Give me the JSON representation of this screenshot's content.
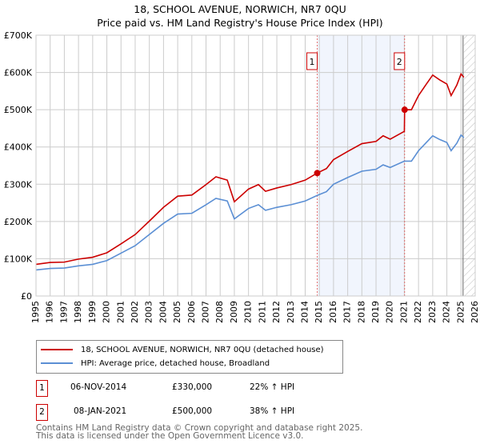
{
  "title": "18, SCHOOL AVENUE, NORWICH, NR7 0QU",
  "subtitle": "Price paid vs. HM Land Registry's House Price Index (HPI)",
  "chart_data": {
    "type": "line",
    "ylim": [
      0,
      700000
    ],
    "xlim": [
      1995,
      2026
    ],
    "yticks": [
      {
        "v": 0,
        "label": "£0"
      },
      {
        "v": 100000,
        "label": "£100K"
      },
      {
        "v": 200000,
        "label": "£200K"
      },
      {
        "v": 300000,
        "label": "£300K"
      },
      {
        "v": 400000,
        "label": "£400K"
      },
      {
        "v": 500000,
        "label": "£500K"
      },
      {
        "v": 600000,
        "label": "£600K"
      },
      {
        "v": 700000,
        "label": "£700K"
      }
    ],
    "xticks": [
      "1995",
      "1996",
      "1997",
      "1998",
      "1999",
      "2000",
      "2001",
      "2002",
      "2003",
      "2004",
      "2005",
      "2006",
      "2007",
      "2008",
      "2009",
      "2010",
      "2011",
      "2012",
      "2013",
      "2014",
      "2015",
      "2016",
      "2017",
      "2018",
      "2019",
      "2020",
      "2021",
      "2022",
      "2023",
      "2024",
      "2025",
      "2026"
    ],
    "grid": true,
    "shaded_range": [
      2014.85,
      2021.02
    ],
    "forecast_hatch_from": 2025.2,
    "series": [
      {
        "name": "18, SCHOOL AVENUE, NORWICH, NR7 0QU (detached house)",
        "color": "#cc0000",
        "x": [
          1995,
          1996,
          1997,
          1998,
          1999,
          2000,
          2001,
          2002,
          2003,
          2004,
          2005,
          2006,
          2007,
          2007.7,
          2008.5,
          2009,
          2010,
          2010.7,
          2011.2,
          2012,
          2013,
          2014,
          2014.85,
          2015.5,
          2016,
          2017,
          2018,
          2019,
          2019.5,
          2020,
          2021.0,
          2021.02,
          2021.5,
          2022,
          2022.5,
          2023,
          2023.5,
          2024,
          2024.3,
          2024.7,
          2025,
          2025.2
        ],
        "y": [
          85000,
          90000,
          91000,
          99000,
          104000,
          116000,
          140000,
          165000,
          201000,
          238000,
          268000,
          271000,
          299000,
          320000,
          311000,
          253000,
          287000,
          299000,
          281000,
          290000,
          299000,
          311000,
          330000,
          342000,
          366000,
          388000,
          409000,
          415000,
          430000,
          421000,
          442000,
          500000,
          500000,
          538000,
          566000,
          593000,
          580000,
          569000,
          538000,
          566000,
          596000,
          587000
        ]
      },
      {
        "name": "HPI: Average price, detached house, Broadland",
        "color": "#5b8fd4",
        "x": [
          1995,
          1996,
          1997,
          1998,
          1999,
          2000,
          2001,
          2002,
          2003,
          2004,
          2005,
          2006,
          2007,
          2007.7,
          2008.5,
          2009,
          2010,
          2010.7,
          2011.2,
          2012,
          2013,
          2014,
          2014.85,
          2015.5,
          2016,
          2017,
          2018,
          2019,
          2019.5,
          2020,
          2021,
          2021.5,
          2022,
          2022.5,
          2023,
          2023.5,
          2024,
          2024.3,
          2024.7,
          2025,
          2025.2
        ],
        "y": [
          70000,
          74000,
          75000,
          81000,
          85000,
          95000,
          115000,
          135000,
          165000,
          195000,
          220000,
          222000,
          245000,
          262000,
          255000,
          207000,
          235000,
          245000,
          230000,
          238000,
          245000,
          255000,
          270000,
          280000,
          300000,
          318000,
          335000,
          340000,
          352000,
          345000,
          362000,
          362000,
          390000,
          410000,
          430000,
          420000,
          412000,
          390000,
          410000,
          432000,
          425000
        ]
      }
    ],
    "annotations": [
      {
        "label": "1",
        "x": 2014.85,
        "y": 330000
      },
      {
        "label": "2",
        "x": 2021.02,
        "y": 500000
      }
    ]
  },
  "legend": {
    "items": [
      {
        "label": "18, SCHOOL AVENUE, NORWICH, NR7 0QU (detached house)",
        "color": "#cc0000"
      },
      {
        "label": "HPI: Average price, detached house, Broadland",
        "color": "#5b8fd4"
      }
    ]
  },
  "transactions": [
    {
      "num": "1",
      "date": "06-NOV-2014",
      "price": "£330,000",
      "hpi": "22% ↑ HPI"
    },
    {
      "num": "2",
      "date": "08-JAN-2021",
      "price": "£500,000",
      "hpi": "38% ↑ HPI"
    }
  ],
  "footer": {
    "line1": "Contains HM Land Registry data © Crown copyright and database right 2025.",
    "line2": "This data is licensed under the Open Government Licence v3.0."
  }
}
